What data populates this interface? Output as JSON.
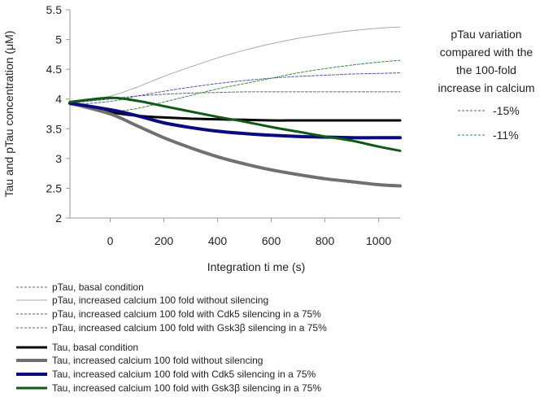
{
  "chart_data": {
    "type": "line",
    "title": "",
    "xlabel": "Integration ti me (s)",
    "ylabel": "Tau and pTau concentration (μM)",
    "xlim": [
      -150,
      1080
    ],
    "ylim": [
      2,
      5.5
    ],
    "xticks": [
      0,
      200,
      400,
      600,
      800,
      1000
    ],
    "xtick_labels": [
      "0",
      "200",
      "400",
      "600",
      "800",
      "1000"
    ],
    "yticks": [
      2,
      2.5,
      3,
      3.5,
      4,
      4.5,
      5,
      5.5
    ],
    "ytick_labels": [
      "2",
      "2.5",
      "3",
      "3.5",
      "4",
      "4.5",
      "5",
      "5.5"
    ],
    "grid": false,
    "x": [
      -150,
      0,
      100,
      200,
      300,
      400,
      500,
      600,
      700,
      800,
      900,
      1000,
      1080
    ],
    "series": [
      {
        "name": "pTau, basal  condition",
        "color": "#666666",
        "width": 1,
        "dash": "3,2",
        "values": [
          3.93,
          4.0,
          4.05,
          4.08,
          4.1,
          4.11,
          4.12,
          4.12,
          4.12,
          4.12,
          4.12,
          4.12,
          4.12
        ]
      },
      {
        "name": "pTau, increased calcium 100  fold without  silencing",
        "color": "#a9a9a9",
        "width": 1,
        "dash": "",
        "values": [
          3.93,
          4.05,
          4.2,
          4.38,
          4.54,
          4.69,
          4.82,
          4.93,
          5.02,
          5.09,
          5.15,
          5.19,
          5.21
        ]
      },
      {
        "name": "pTau, increased calcium 100  fold  with Cdk5  silencing in a 75%",
        "color": "#5555bb",
        "width": 1,
        "dash": "3,2",
        "values": [
          3.9,
          3.96,
          4.05,
          4.13,
          4.2,
          4.26,
          4.31,
          4.35,
          4.38,
          4.4,
          4.42,
          4.43,
          4.44
        ]
      },
      {
        "name": "pTau, increased calcium 100  fold with Gsk3β  silencing in a 75%",
        "color": "#3e8a3e",
        "width": 1,
        "dash": "3,2",
        "values": [
          3.9,
          3.8,
          3.84,
          3.95,
          4.06,
          4.17,
          4.26,
          4.35,
          4.44,
          4.51,
          4.57,
          4.62,
          4.65
        ]
      },
      {
        "name": "Tau, basal  condition",
        "color": "#000000",
        "width": 3,
        "dash": "",
        "values": [
          3.93,
          3.78,
          3.72,
          3.69,
          3.67,
          3.66,
          3.65,
          3.64,
          3.64,
          3.64,
          3.64,
          3.64,
          3.64
        ]
      },
      {
        "name": "Tau, increased calcium 100 fold without  silencing",
        "color": "#707070",
        "width": 4,
        "dash": "",
        "values": [
          3.93,
          3.75,
          3.55,
          3.35,
          3.18,
          3.03,
          2.91,
          2.81,
          2.73,
          2.66,
          2.61,
          2.56,
          2.54
        ]
      },
      {
        "name": "Tau, increased calcium 100  fold with Cdk5  silencing in a 75%",
        "color": "#0a0a80",
        "width": 4,
        "dash": "",
        "values": [
          3.93,
          3.82,
          3.72,
          3.6,
          3.52,
          3.46,
          3.42,
          3.39,
          3.37,
          3.36,
          3.35,
          3.35,
          3.35
        ]
      },
      {
        "name": "Tau, increased calcium 100 fold  with Gsk3β  silencing in a 75%",
        "color": "#0f5a16",
        "width": 3,
        "dash": "",
        "values": [
          3.95,
          4.02,
          3.97,
          3.88,
          3.79,
          3.7,
          3.62,
          3.53,
          3.45,
          3.37,
          3.3,
          3.2,
          3.13
        ]
      }
    ]
  },
  "side_panel": {
    "title_lines": [
      "pTau variation",
      "compared with the",
      "the 100-fold",
      "increase in calcium"
    ],
    "items": [
      {
        "label": "-15%",
        "color": "#5555bb"
      },
      {
        "label": "-11%",
        "color": "#3e8a3e"
      }
    ]
  }
}
